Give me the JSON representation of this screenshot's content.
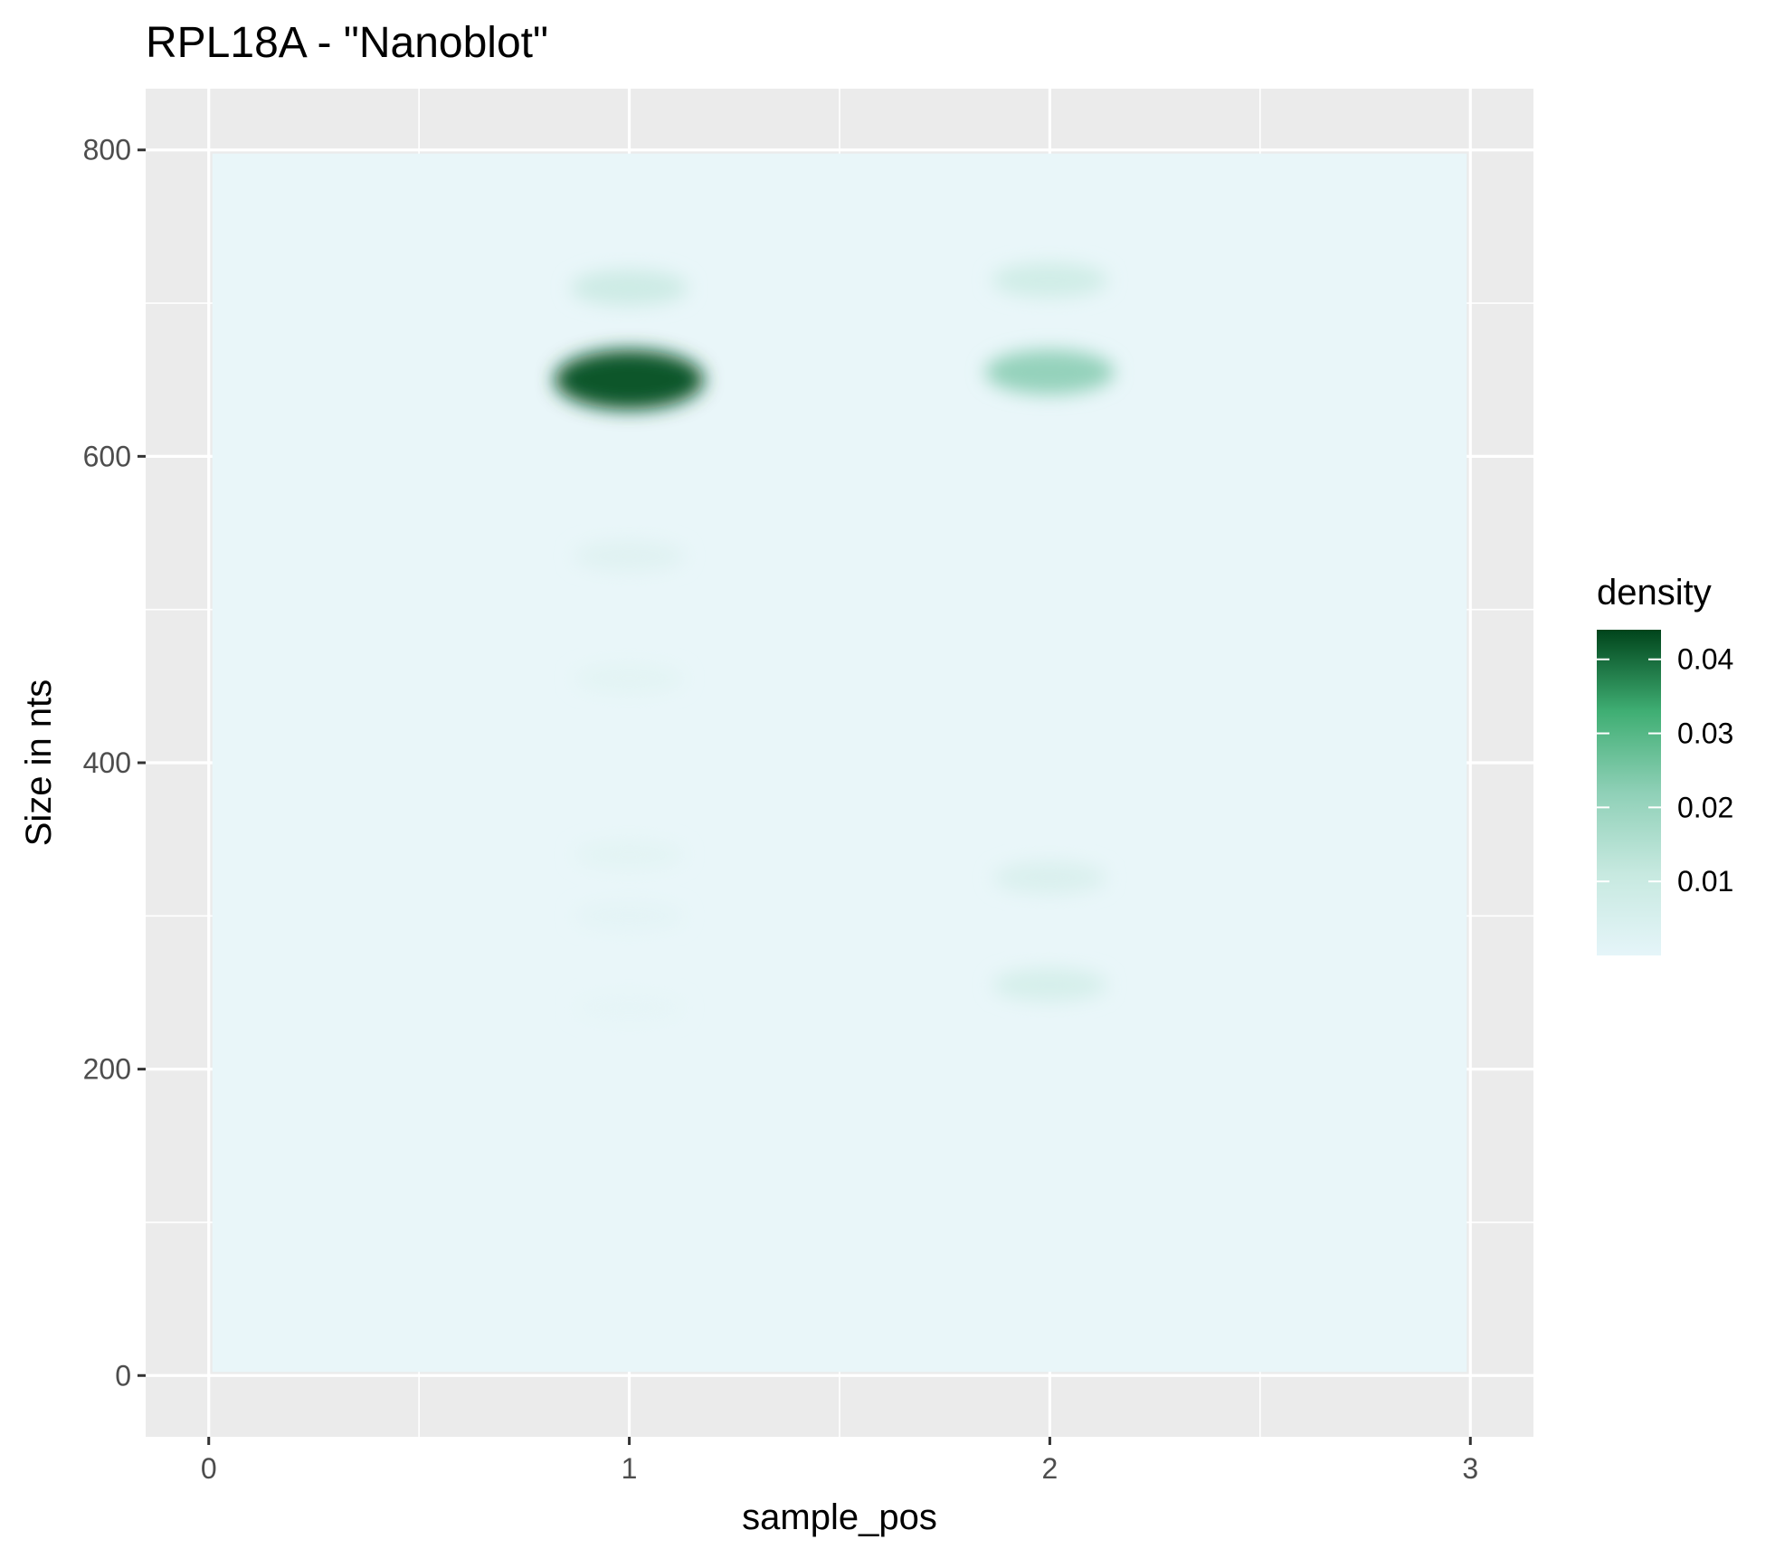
{
  "chart_data": {
    "type": "heatmap",
    "title": "RPL18A - \"Nanoblot\"",
    "xlabel": "sample_pos",
    "ylabel": "Size in nts",
    "xlim": [
      -0.15,
      3.15
    ],
    "ylim": [
      -40,
      840
    ],
    "x_ticks": [
      0,
      1,
      2,
      3
    ],
    "y_ticks": [
      0,
      200,
      400,
      600,
      800
    ],
    "x_tick_labels": [
      "0",
      "1",
      "2",
      "3"
    ],
    "y_tick_labels": [
      "0",
      "200",
      "400",
      "600",
      "800"
    ],
    "density_range": [
      0,
      0.044
    ],
    "raster_extent": {
      "x": [
        0,
        3
      ],
      "y": [
        0,
        800
      ]
    },
    "grid": true,
    "panel_background": "#ebebeb",
    "legend": {
      "title": "density",
      "position": "right",
      "ticks": [
        0.01,
        0.02,
        0.03,
        0.04
      ],
      "tick_labels": [
        "0.01",
        "0.02",
        "0.03",
        "0.04"
      ],
      "colors": [
        "#e5f5f9",
        "#99d8c9",
        "#41ae76",
        "#00441b"
      ]
    },
    "series": [
      {
        "x": 1,
        "bands": [
          {
            "size": 650,
            "density": 0.042
          },
          {
            "size": 710,
            "density": 0.009
          },
          {
            "size": 535,
            "density": 0.003
          },
          {
            "size": 455,
            "density": 0.002
          },
          {
            "size": 340,
            "density": 0.002
          },
          {
            "size": 300,
            "density": 0.0015
          },
          {
            "size": 240,
            "density": 0.001
          }
        ]
      },
      {
        "x": 2,
        "bands": [
          {
            "size": 655,
            "density": 0.021
          },
          {
            "size": 715,
            "density": 0.008
          },
          {
            "size": 325,
            "density": 0.005
          },
          {
            "size": 255,
            "density": 0.006
          }
        ]
      }
    ]
  }
}
